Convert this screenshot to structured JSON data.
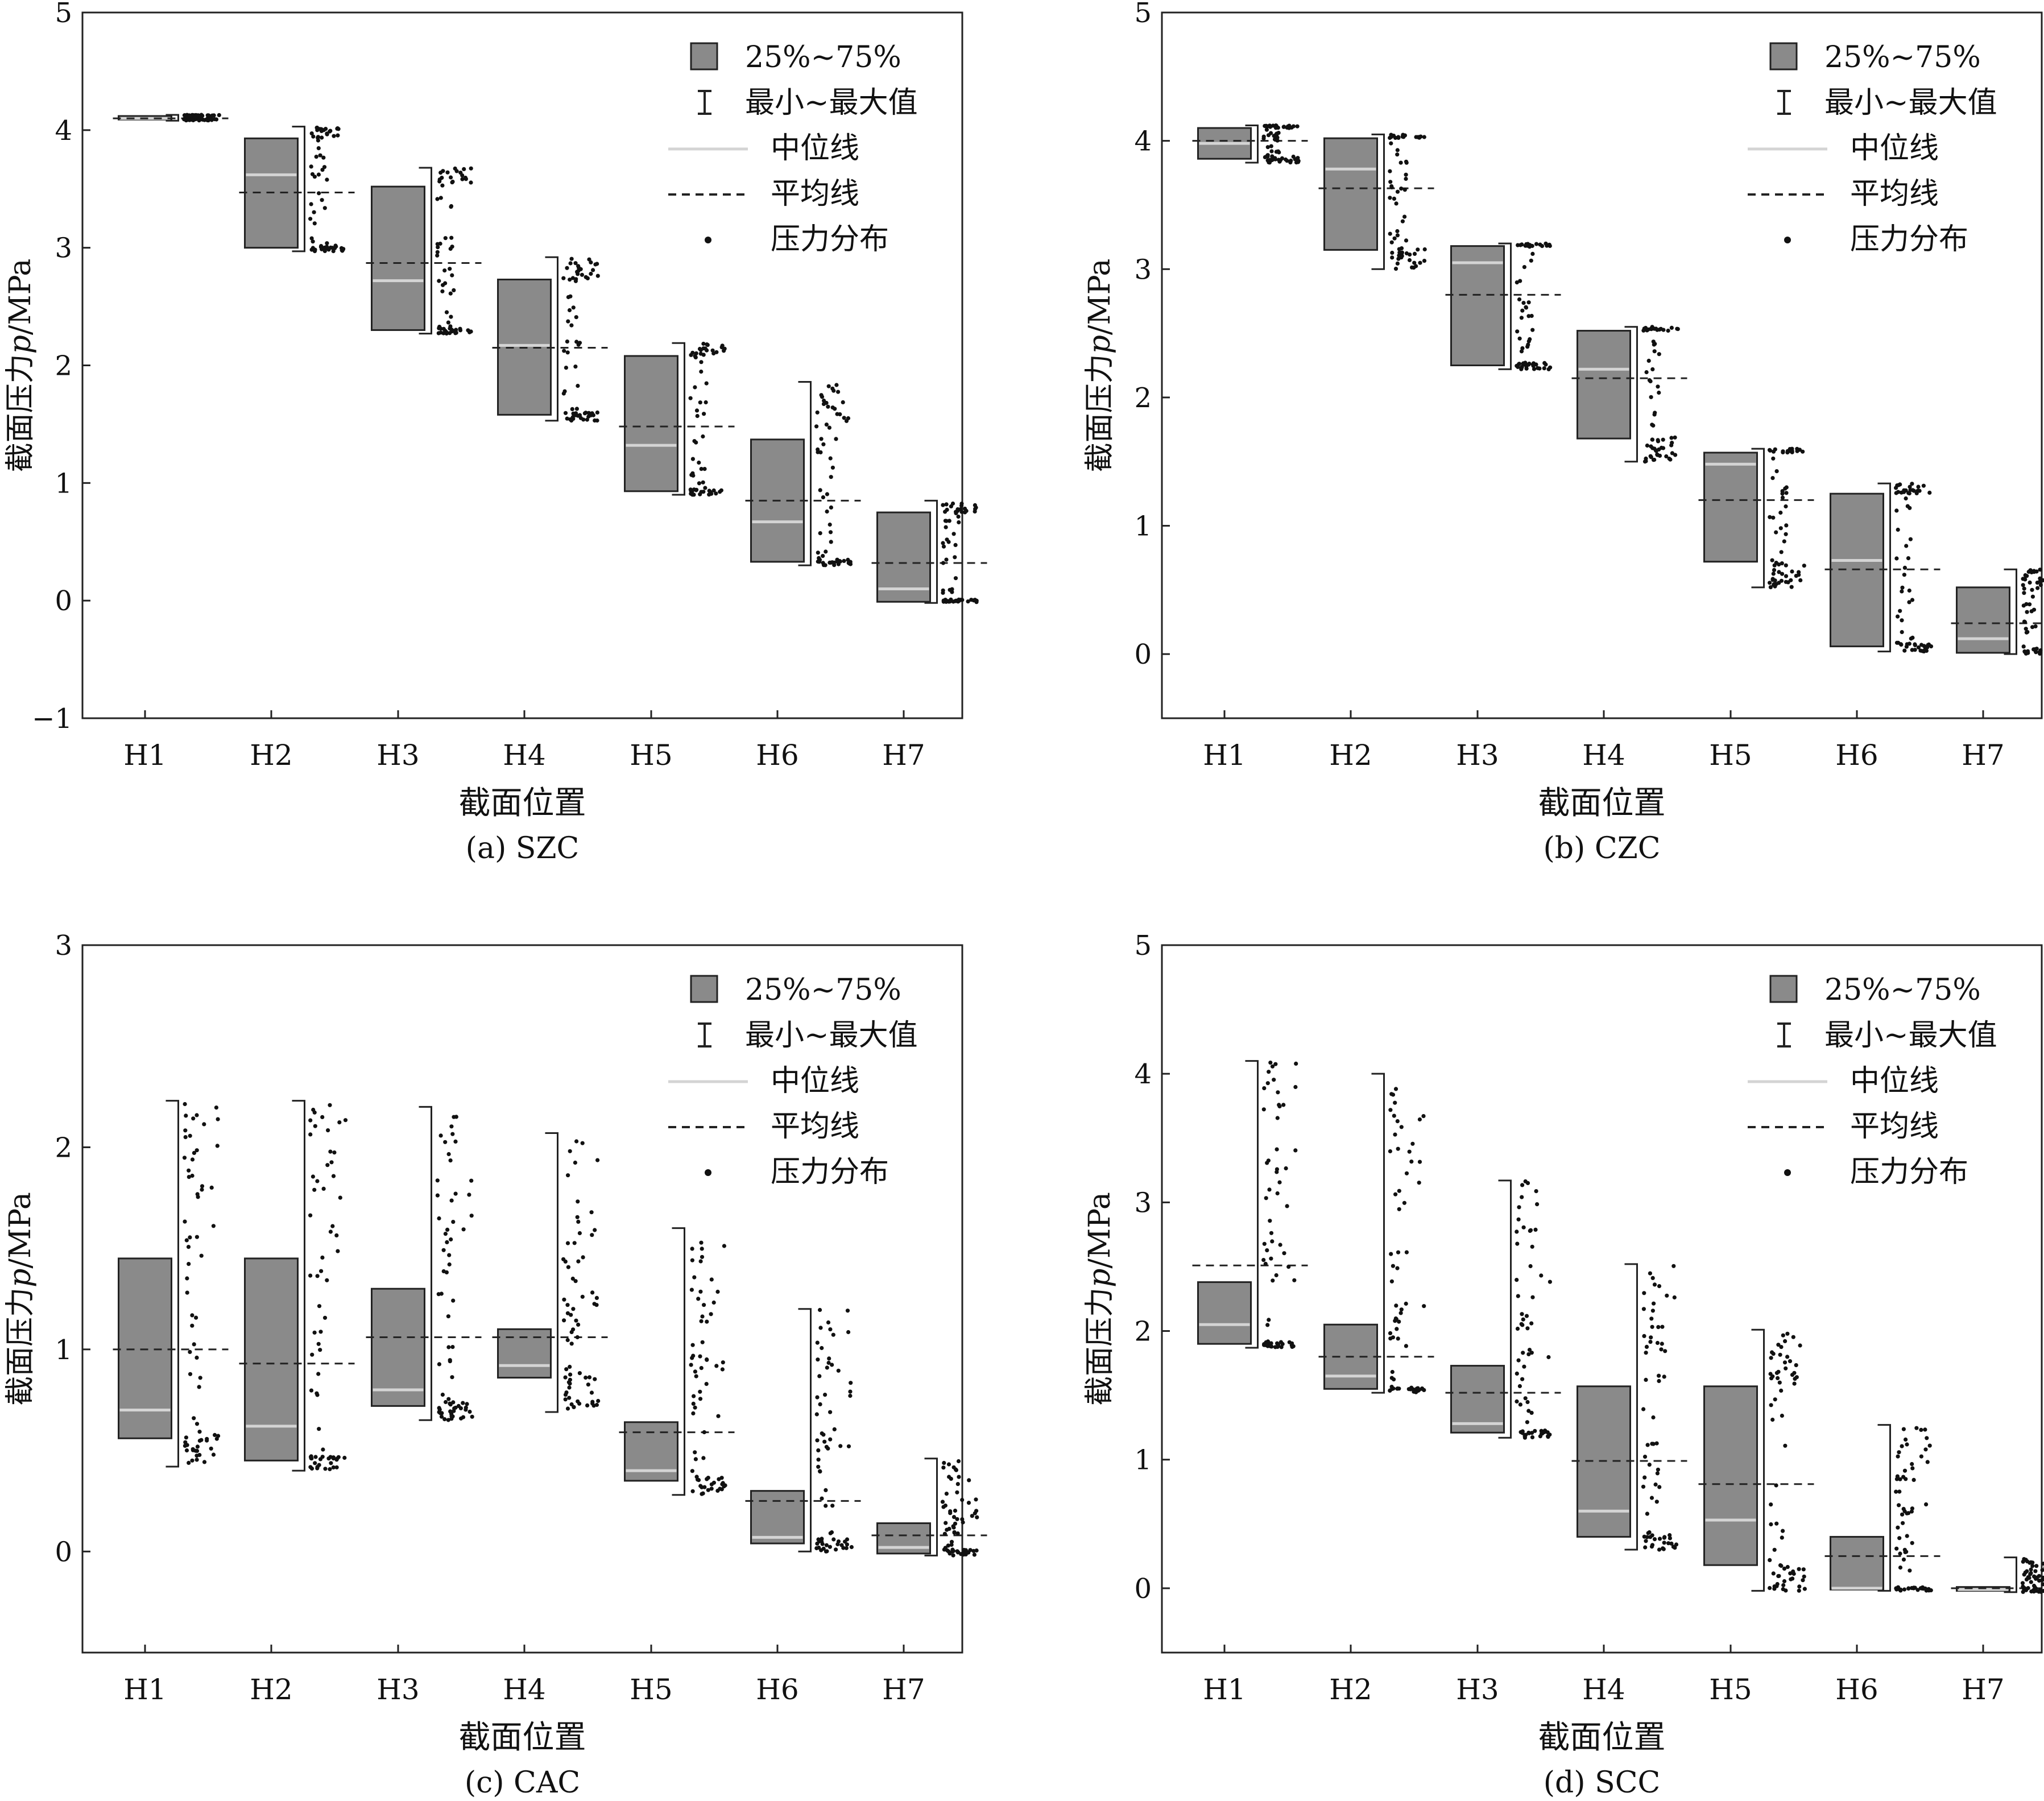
{
  "colors": {
    "box_fill": "#8a8a8a",
    "box_stroke": "#222222",
    "median": "#d4d4d4",
    "mean": "#222222",
    "points": "#111111",
    "axis": "#222222"
  },
  "legend": {
    "box": "25%~75%",
    "range": "最小~最大值",
    "median": "中位线",
    "mean": "平均线",
    "points": "压力分布"
  },
  "chart_data": [
    {
      "type": "boxplot",
      "caption": "(a) SZC",
      "xlabel": "截面位置",
      "ylabel_prefix": "截面压力",
      "ylabel_var": "p",
      "ylabel_unit": "/MPa",
      "ylim": [
        -1,
        5
      ],
      "yticks": [
        "−1",
        "0",
        "1",
        "2",
        "3",
        "4",
        "5"
      ],
      "ytick_values": [
        -1,
        0,
        1,
        2,
        3,
        4,
        5
      ],
      "categories": [
        "H1",
        "H2",
        "H3",
        "H4",
        "H5",
        "H6",
        "H7"
      ],
      "series": [
        {
          "name": "H1",
          "min": 4.08,
          "q1": 4.09,
          "median": 4.1,
          "q3": 4.12,
          "max": 4.13,
          "mean": 4.1
        },
        {
          "name": "H2",
          "min": 2.97,
          "q1": 3.0,
          "median": 3.62,
          "q3": 3.93,
          "max": 4.03,
          "mean": 3.47
        },
        {
          "name": "H3",
          "min": 2.27,
          "q1": 2.3,
          "median": 2.72,
          "q3": 3.52,
          "max": 3.68,
          "mean": 2.87
        },
        {
          "name": "H4",
          "min": 1.53,
          "q1": 1.58,
          "median": 2.17,
          "q3": 2.73,
          "max": 2.92,
          "mean": 2.15
        },
        {
          "name": "H5",
          "min": 0.9,
          "q1": 0.93,
          "median": 1.32,
          "q3": 2.08,
          "max": 2.19,
          "mean": 1.48
        },
        {
          "name": "H6",
          "min": 0.3,
          "q1": 0.33,
          "median": 0.67,
          "q3": 1.37,
          "max": 1.86,
          "mean": 0.85
        },
        {
          "name": "H7",
          "min": -0.02,
          "q1": -0.01,
          "median": 0.1,
          "q3": 0.75,
          "max": 0.85,
          "mean": 0.32
        }
      ]
    },
    {
      "type": "boxplot",
      "caption": "(b) CZC",
      "xlabel": "截面位置",
      "ylabel_prefix": "截面压力",
      "ylabel_var": "p",
      "ylabel_unit": "/MPa",
      "ylim": [
        -0.5,
        5
      ],
      "yticks": [
        "0",
        "1",
        "2",
        "3",
        "4",
        "5"
      ],
      "ytick_values": [
        0,
        1,
        2,
        3,
        4,
        5
      ],
      "categories": [
        "H1",
        "H2",
        "H3",
        "H4",
        "H5",
        "H6",
        "H7"
      ],
      "series": [
        {
          "name": "H1",
          "min": 3.83,
          "q1": 3.86,
          "median": 3.98,
          "q3": 4.1,
          "max": 4.12,
          "mean": 4.0
        },
        {
          "name": "H2",
          "min": 3.0,
          "q1": 3.15,
          "median": 3.78,
          "q3": 4.02,
          "max": 4.05,
          "mean": 3.63
        },
        {
          "name": "H3",
          "min": 2.22,
          "q1": 2.25,
          "median": 3.05,
          "q3": 3.18,
          "max": 3.2,
          "mean": 2.8
        },
        {
          "name": "H4",
          "min": 1.5,
          "q1": 1.68,
          "median": 2.22,
          "q3": 2.52,
          "max": 2.55,
          "mean": 2.15
        },
        {
          "name": "H5",
          "min": 0.52,
          "q1": 0.72,
          "median": 1.48,
          "q3": 1.57,
          "max": 1.6,
          "mean": 1.2
        },
        {
          "name": "H6",
          "min": 0.02,
          "q1": 0.06,
          "median": 0.73,
          "q3": 1.25,
          "max": 1.33,
          "mean": 0.66
        },
        {
          "name": "H7",
          "min": 0.0,
          "q1": 0.01,
          "median": 0.12,
          "q3": 0.52,
          "max": 0.66,
          "mean": 0.24
        }
      ]
    },
    {
      "type": "boxplot",
      "caption": "(c) CAC",
      "xlabel": "截面位置",
      "ylabel_prefix": "截面压力",
      "ylabel_var": "p",
      "ylabel_unit": "/MPa",
      "ylim": [
        -0.5,
        3
      ],
      "yticks": [
        "0",
        "1",
        "2",
        "3"
      ],
      "ytick_values": [
        0,
        1,
        2,
        3
      ],
      "categories": [
        "H1",
        "H2",
        "H3",
        "H4",
        "H5",
        "H6",
        "H7"
      ],
      "series": [
        {
          "name": "H1",
          "min": 0.42,
          "q1": 0.56,
          "median": 0.7,
          "q3": 1.45,
          "max": 2.23,
          "mean": 1.0
        },
        {
          "name": "H2",
          "min": 0.4,
          "q1": 0.45,
          "median": 0.62,
          "q3": 1.45,
          "max": 2.23,
          "mean": 0.93
        },
        {
          "name": "H3",
          "min": 0.65,
          "q1": 0.72,
          "median": 0.8,
          "q3": 1.3,
          "max": 2.2,
          "mean": 1.06
        },
        {
          "name": "H4",
          "min": 0.69,
          "q1": 0.86,
          "median": 0.92,
          "q3": 1.1,
          "max": 2.07,
          "mean": 1.06
        },
        {
          "name": "H5",
          "min": 0.28,
          "q1": 0.35,
          "median": 0.4,
          "q3": 0.64,
          "max": 1.6,
          "mean": 0.59
        },
        {
          "name": "H6",
          "min": 0.0,
          "q1": 0.04,
          "median": 0.07,
          "q3": 0.3,
          "max": 1.2,
          "mean": 0.25
        },
        {
          "name": "H7",
          "min": -0.02,
          "q1": -0.01,
          "median": 0.02,
          "q3": 0.14,
          "max": 0.46,
          "mean": 0.08
        }
      ]
    },
    {
      "type": "boxplot",
      "caption": "(d) SCC",
      "xlabel": "截面位置",
      "ylabel_prefix": "截面压力",
      "ylabel_var": "p",
      "ylabel_unit": "/MPa",
      "ylim": [
        -0.5,
        5
      ],
      "yticks": [
        "0",
        "1",
        "2",
        "3",
        "4",
        "5"
      ],
      "ytick_values": [
        0,
        1,
        2,
        3,
        4,
        5
      ],
      "categories": [
        "H1",
        "H2",
        "H3",
        "H4",
        "H5",
        "H6",
        "H7"
      ],
      "series": [
        {
          "name": "H1",
          "min": 1.87,
          "q1": 1.9,
          "median": 2.05,
          "q3": 2.38,
          "max": 4.1,
          "mean": 2.51
        },
        {
          "name": "H2",
          "min": 1.52,
          "q1": 1.55,
          "median": 1.65,
          "q3": 2.05,
          "max": 4.0,
          "mean": 1.8
        },
        {
          "name": "H3",
          "min": 1.17,
          "q1": 1.21,
          "median": 1.28,
          "q3": 1.73,
          "max": 3.17,
          "mean": 1.52
        },
        {
          "name": "H4",
          "min": 0.3,
          "q1": 0.4,
          "median": 0.6,
          "q3": 1.57,
          "max": 2.52,
          "mean": 0.99
        },
        {
          "name": "H5",
          "min": -0.02,
          "q1": 0.18,
          "median": 0.53,
          "q3": 1.57,
          "max": 2.01,
          "mean": 0.81
        },
        {
          "name": "H6",
          "min": -0.02,
          "q1": -0.01,
          "median": 0.0,
          "q3": 0.4,
          "max": 1.27,
          "mean": 0.25
        },
        {
          "name": "H7",
          "min": -0.03,
          "q1": -0.02,
          "median": -0.01,
          "q3": 0.01,
          "max": 0.24,
          "mean": 0.0
        }
      ]
    }
  ]
}
